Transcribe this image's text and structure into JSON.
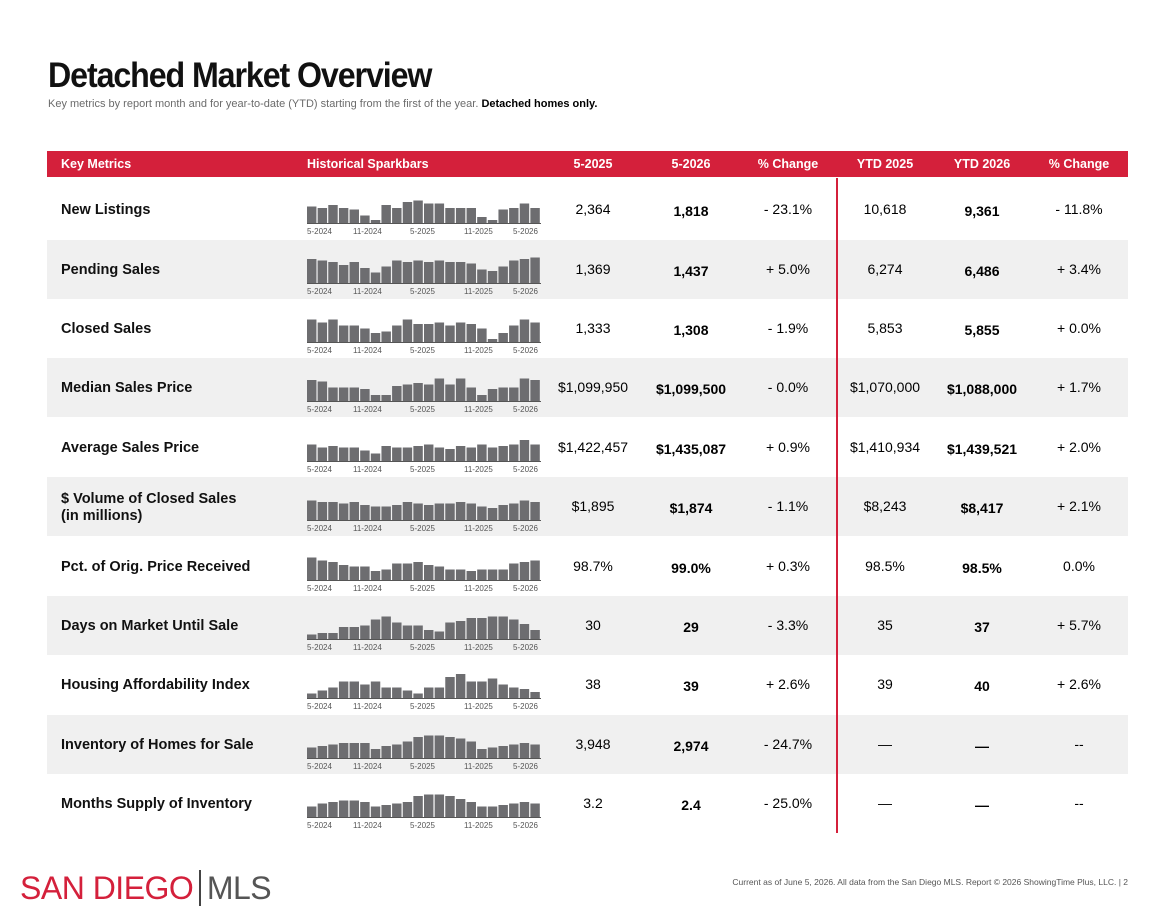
{
  "page": {
    "title": "Detached Market Overview",
    "subtitle_text": "Key metrics by report month and for year-to-date (YTD) starting from the first of the year.",
    "subtitle_bold": "Detached homes only."
  },
  "header": {
    "key_metrics": "Key Metrics",
    "sparkbars": "Historical Sparkbars",
    "col1": "5-2025",
    "col2": "5-2026",
    "col3": "% Change",
    "col4": "YTD 2025",
    "col5": "YTD 2026",
    "col6": "% Change"
  },
  "spark_axis": [
    "5-2024",
    "11-2024",
    "5-2025",
    "11-2025",
    "5-2026"
  ],
  "rows": [
    {
      "label": "New Listings",
      "v1": "2,364",
      "v2": "1,818",
      "c1": "- 23.1%",
      "y1": "10,618",
      "y2": "9,361",
      "c2": "- 11.8%",
      "bars": [
        0.55,
        0.5,
        0.6,
        0.5,
        0.45,
        0.25,
        0.1,
        0.6,
        0.5,
        0.7,
        0.75,
        0.65,
        0.65,
        0.5,
        0.5,
        0.5,
        0.2,
        0.1,
        0.45,
        0.5,
        0.65,
        0.5
      ]
    },
    {
      "label": "Pending Sales",
      "v1": "1,369",
      "v2": "1,437",
      "c1": "+ 5.0%",
      "y1": "6,274",
      "y2": "6,486",
      "c2": "+ 3.4%",
      "bars": [
        0.8,
        0.75,
        0.7,
        0.6,
        0.7,
        0.5,
        0.35,
        0.55,
        0.75,
        0.7,
        0.75,
        0.7,
        0.75,
        0.7,
        0.7,
        0.65,
        0.45,
        0.4,
        0.55,
        0.75,
        0.8,
        0.85
      ]
    },
    {
      "label": "Closed Sales",
      "v1": "1,333",
      "v2": "1,308",
      "c1": "- 1.9%",
      "y1": "5,853",
      "y2": "5,855",
      "c2": "+ 0.0%",
      "bars": [
        0.75,
        0.65,
        0.75,
        0.55,
        0.55,
        0.45,
        0.3,
        0.35,
        0.55,
        0.75,
        0.6,
        0.6,
        0.65,
        0.55,
        0.65,
        0.6,
        0.45,
        0.1,
        0.3,
        0.55,
        0.75,
        0.65
      ]
    },
    {
      "label": "Median Sales Price",
      "v1": "$1,099,950",
      "v2": "$1,099,500",
      "c1": "- 0.0%",
      "y1": "$1,070,000",
      "y2": "$1,088,000",
      "c2": "+ 1.7%",
      "bars": [
        0.7,
        0.65,
        0.45,
        0.45,
        0.45,
        0.4,
        0.2,
        0.2,
        0.5,
        0.55,
        0.6,
        0.55,
        0.75,
        0.55,
        0.75,
        0.45,
        0.2,
        0.4,
        0.45,
        0.45,
        0.75,
        0.7
      ]
    },
    {
      "label": "Average Sales Price",
      "v1": "$1,422,457",
      "v2": "$1,435,087",
      "c1": "+ 0.9%",
      "y1": "$1,410,934",
      "y2": "$1,439,521",
      "c2": "+ 2.0%",
      "bars": [
        0.55,
        0.45,
        0.5,
        0.45,
        0.45,
        0.35,
        0.25,
        0.5,
        0.45,
        0.45,
        0.5,
        0.55,
        0.45,
        0.4,
        0.5,
        0.45,
        0.55,
        0.45,
        0.5,
        0.55,
        0.7,
        0.55
      ]
    },
    {
      "label": "$ Volume of Closed Sales",
      "label2": "(in millions)",
      "v1": "$1,895",
      "v2": "$1,874",
      "c1": "- 1.1%",
      "y1": "$8,243",
      "y2": "$8,417",
      "c2": "+ 2.1%",
      "bars": [
        0.65,
        0.6,
        0.6,
        0.55,
        0.6,
        0.5,
        0.45,
        0.45,
        0.5,
        0.6,
        0.55,
        0.5,
        0.55,
        0.55,
        0.6,
        0.55,
        0.45,
        0.4,
        0.5,
        0.55,
        0.65,
        0.6
      ]
    },
    {
      "label": "Pct. of Orig. Price Received",
      "v1": "98.7%",
      "v2": "99.0%",
      "c1": "+ 0.3%",
      "y1": "98.5%",
      "y2": "98.5%",
      "c2": "0.0%",
      "bars": [
        0.75,
        0.65,
        0.6,
        0.5,
        0.45,
        0.45,
        0.3,
        0.35,
        0.55,
        0.55,
        0.6,
        0.5,
        0.45,
        0.35,
        0.35,
        0.3,
        0.35,
        0.35,
        0.35,
        0.55,
        0.6,
        0.65
      ]
    },
    {
      "label": "Days on Market Until Sale",
      "v1": "30",
      "v2": "29",
      "c1": "- 3.3%",
      "y1": "35",
      "y2": "37",
      "c2": "+ 5.7%",
      "bars": [
        0.15,
        0.2,
        0.2,
        0.4,
        0.4,
        0.45,
        0.65,
        0.75,
        0.55,
        0.45,
        0.45,
        0.3,
        0.25,
        0.55,
        0.6,
        0.7,
        0.7,
        0.75,
        0.75,
        0.65,
        0.5,
        0.3
      ]
    },
    {
      "label": "Housing Affordability Index",
      "v1": "38",
      "v2": "39",
      "c1": "+ 2.6%",
      "y1": "39",
      "y2": "40",
      "c2": "+ 2.6%",
      "bars": [
        0.15,
        0.25,
        0.35,
        0.55,
        0.55,
        0.45,
        0.55,
        0.35,
        0.35,
        0.25,
        0.15,
        0.35,
        0.35,
        0.7,
        0.8,
        0.55,
        0.55,
        0.65,
        0.45,
        0.35,
        0.3,
        0.2
      ]
    },
    {
      "label": "Inventory of Homes for Sale",
      "v1": "3,948",
      "v2": "2,974",
      "c1": "- 24.7%",
      "y1": "—",
      "y2": "—",
      "c2": "--",
      "bars": [
        0.35,
        0.4,
        0.45,
        0.5,
        0.5,
        0.5,
        0.3,
        0.4,
        0.45,
        0.55,
        0.7,
        0.75,
        0.75,
        0.7,
        0.65,
        0.55,
        0.3,
        0.35,
        0.4,
        0.45,
        0.5,
        0.45
      ]
    },
    {
      "label": "Months Supply of Inventory",
      "v1": "3.2",
      "v2": "2.4",
      "c1": "- 25.0%",
      "y1": "—",
      "y2": "—",
      "c2": "--",
      "bars": [
        0.35,
        0.45,
        0.5,
        0.55,
        0.55,
        0.5,
        0.35,
        0.4,
        0.45,
        0.5,
        0.7,
        0.75,
        0.75,
        0.7,
        0.6,
        0.5,
        0.35,
        0.35,
        0.4,
        0.45,
        0.5,
        0.45
      ]
    }
  ],
  "logo": {
    "left": "SAN DIEGO",
    "right": "MLS"
  },
  "footer": "Current as of June 5, 2026. All data from the San Diego MLS. Report © 2026 ShowingTime Plus, LLC.  |  2",
  "colors": {
    "accent": "#d4203b",
    "bar": "#6d6d70",
    "shade": "#f0f0f0"
  }
}
